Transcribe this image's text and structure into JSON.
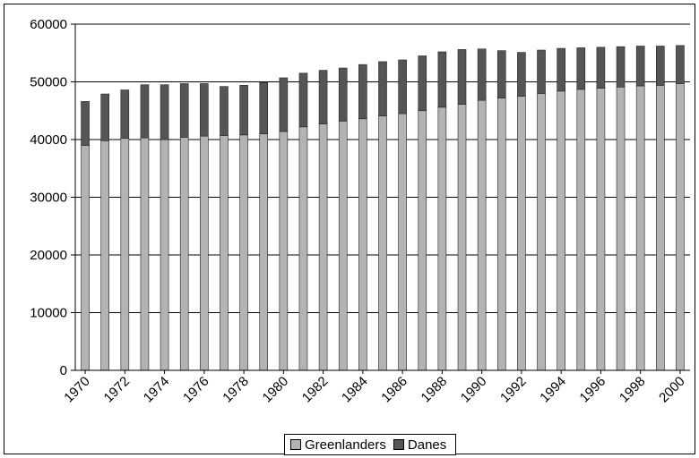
{
  "chart_data": {
    "type": "bar",
    "stacked": true,
    "categories": [
      "1970",
      "1971",
      "1972",
      "1973",
      "1974",
      "1975",
      "1976",
      "1977",
      "1978",
      "1979",
      "1980",
      "1981",
      "1982",
      "1983",
      "1984",
      "1985",
      "1986",
      "1987",
      "1988",
      "1989",
      "1990",
      "1991",
      "1992",
      "1993",
      "1994",
      "1995",
      "1996",
      "1997",
      "1998",
      "1999",
      "2000"
    ],
    "x_tick_labels": [
      "1970",
      "1972",
      "1974",
      "1976",
      "1978",
      "1980",
      "1982",
      "1984",
      "1986",
      "1988",
      "1990",
      "1992",
      "1994",
      "1996",
      "1998",
      "2000"
    ],
    "series": [
      {
        "name": "Greenlanders",
        "color": "#b3b3b3",
        "values": [
          39000,
          39800,
          40200,
          40300,
          40000,
          40400,
          40600,
          40700,
          40800,
          41000,
          41400,
          42200,
          42700,
          43200,
          43600,
          44100,
          44500,
          45000,
          45600,
          46100,
          46800,
          47200,
          47500,
          48000,
          48400,
          48700,
          48900,
          49100,
          49300,
          49400,
          49700
        ]
      },
      {
        "name": "Danes",
        "color": "#555555",
        "values": [
          7600,
          8100,
          8400,
          9200,
          9500,
          9300,
          9100,
          8500,
          8600,
          8900,
          9300,
          9300,
          9300,
          9200,
          9400,
          9400,
          9300,
          9500,
          9600,
          9500,
          8900,
          8200,
          7600,
          7500,
          7400,
          7200,
          7100,
          7000,
          6900,
          6800,
          6600
        ]
      }
    ],
    "title": "",
    "xlabel": "",
    "ylabel": "",
    "ylim": [
      0,
      60000
    ],
    "y_ticks": [
      "0",
      "10000",
      "20000",
      "30000",
      "40000",
      "50000",
      "60000"
    ],
    "grid": "horizontal",
    "legend_position": "bottom"
  }
}
